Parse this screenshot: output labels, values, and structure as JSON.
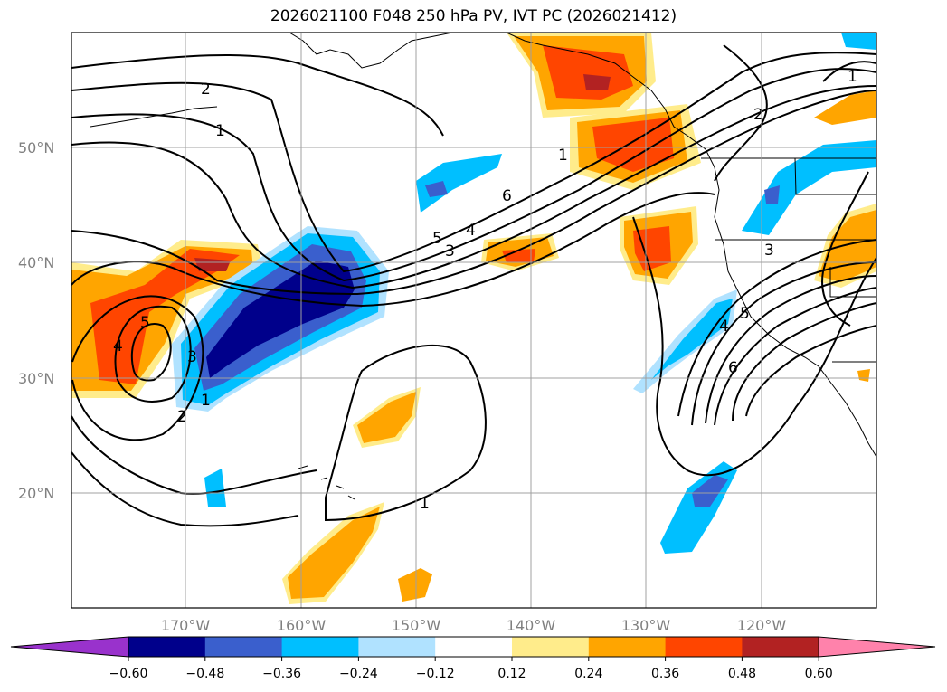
{
  "title": "2026021100 F048 250 hPa PV, IVT PC (2026021412)",
  "map": {
    "lat_labels": [
      "50°N",
      "40°N",
      "30°N",
      "20°N"
    ],
    "lon_labels": [
      "170°W",
      "160°W",
      "150°W",
      "140°W",
      "130°W",
      "120°W"
    ],
    "grid": true,
    "contour_labels": [
      "1",
      "2",
      "3",
      "4",
      "5",
      "6"
    ]
  },
  "colorbar": {
    "tick_labels": [
      "−0.60",
      "−0.48",
      "−0.36",
      "−0.24",
      "−0.12",
      "0.12",
      "0.24",
      "0.36",
      "0.48",
      "0.60"
    ],
    "colors": [
      "#9932cc",
      "#00008b",
      "#3a5fcd",
      "#00bfff",
      "#b0e2ff",
      "#ffffff",
      "#ffec8b",
      "#ffa500",
      "#ff4500",
      "#b22222",
      "#ff82ab"
    ],
    "extend": "both"
  }
}
